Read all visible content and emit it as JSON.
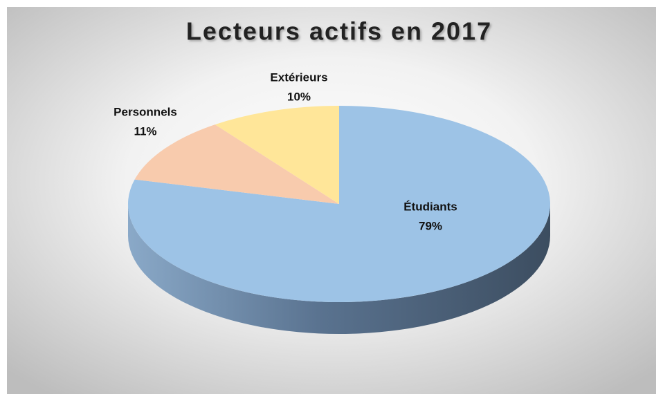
{
  "chart_data": {
    "type": "pie",
    "title": "Lecteurs actifs en 2017",
    "categories": [
      "Étudiants",
      "Personnels",
      "Extérieurs"
    ],
    "values": [
      79,
      11,
      10
    ],
    "value_labels": [
      "79%",
      "11%",
      "10%"
    ],
    "colors": [
      "#9dc3e6",
      "#f8cbad",
      "#ffe699"
    ]
  }
}
